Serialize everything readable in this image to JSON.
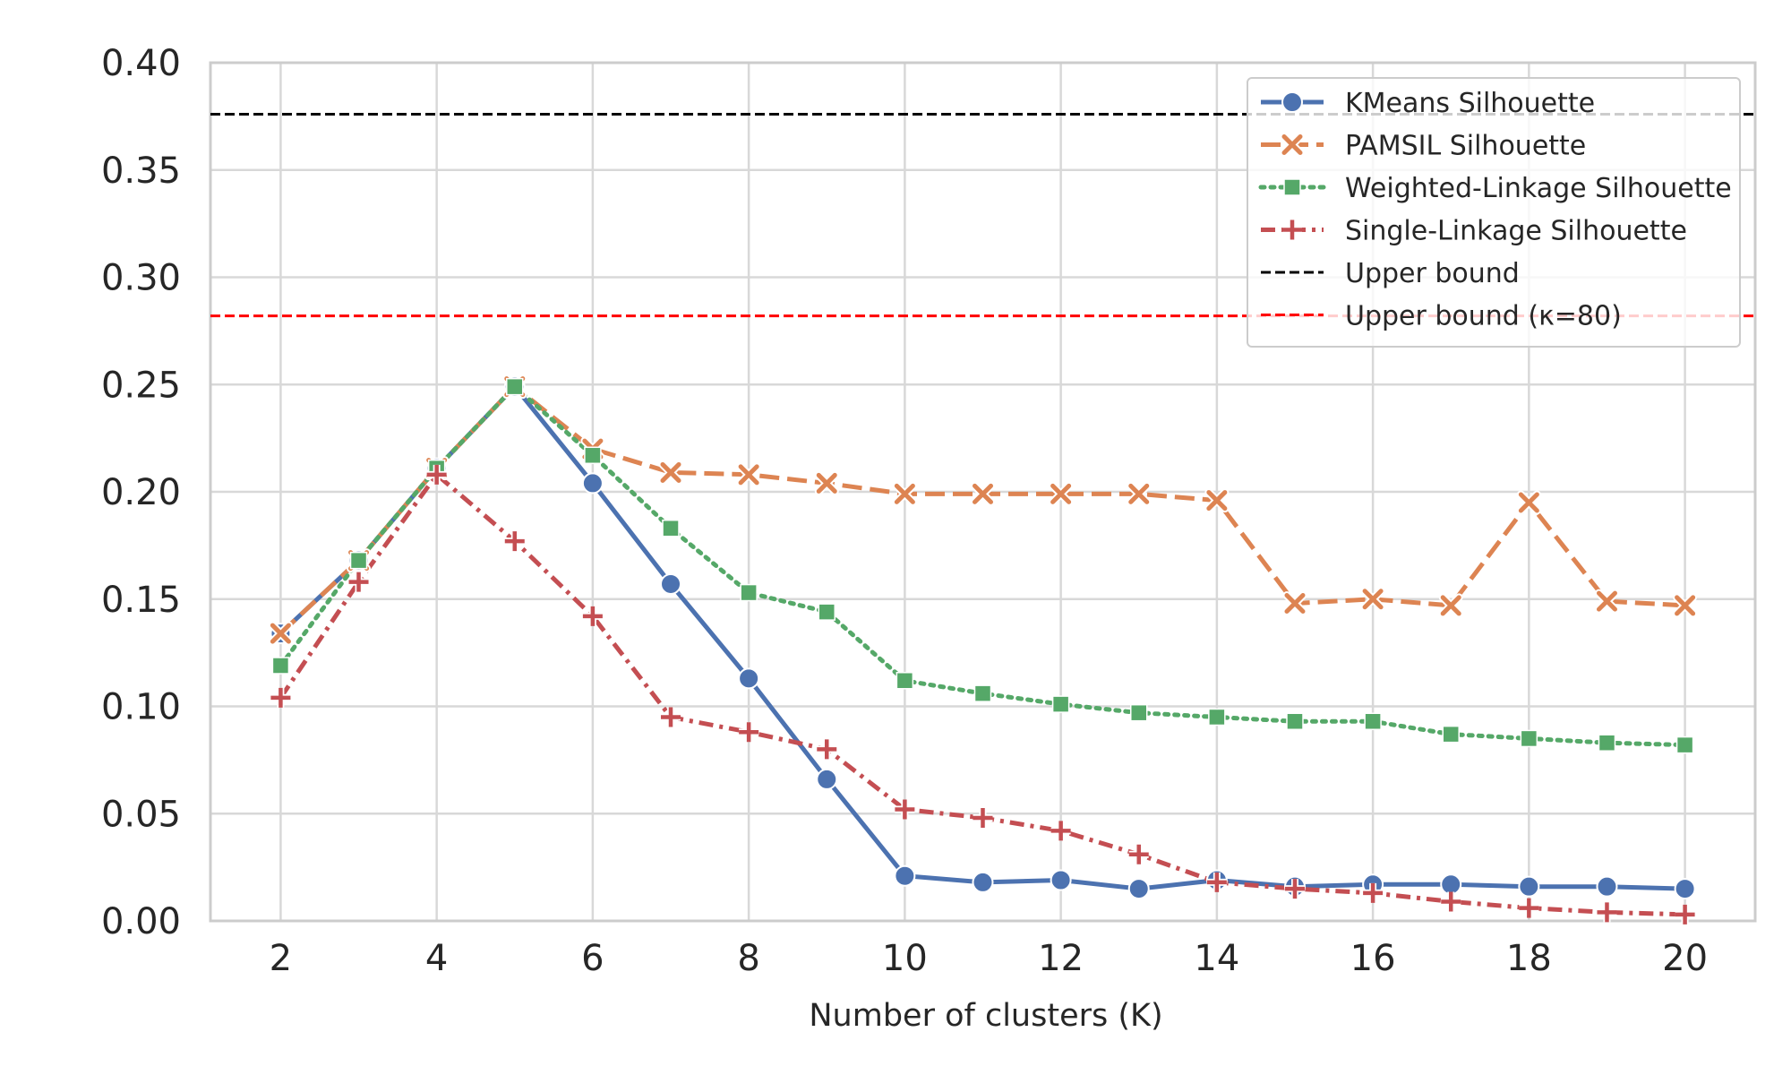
{
  "chart_data": {
    "type": "line",
    "xlabel": "Number of clusters (K)",
    "ylabel": "",
    "xlim": [
      1.1,
      20.9
    ],
    "ylim": [
      0.0,
      0.4
    ],
    "xticks": [
      2,
      4,
      6,
      8,
      10,
      12,
      14,
      16,
      18,
      20
    ],
    "yticks": [
      "0.00",
      "0.05",
      "0.10",
      "0.15",
      "0.20",
      "0.25",
      "0.30",
      "0.35",
      "0.40"
    ],
    "grid": true,
    "legend_position": "top-right",
    "x": [
      2,
      3,
      4,
      5,
      6,
      7,
      8,
      9,
      10,
      11,
      12,
      13,
      14,
      15,
      16,
      17,
      18,
      19,
      20
    ],
    "series": [
      {
        "name": "KMeans Silhouette",
        "color": "#4c72b0",
        "marker": "circle",
        "dash": "solid",
        "values": [
          0.134,
          0.168,
          0.211,
          0.249,
          0.204,
          0.157,
          0.113,
          0.066,
          0.021,
          0.018,
          0.019,
          0.015,
          0.019,
          0.016,
          0.017,
          0.017,
          0.016,
          0.016,
          0.015
        ]
      },
      {
        "name": "PAMSIL Silhouette",
        "color": "#dd8452",
        "marker": "x",
        "dash": "longdash",
        "values": [
          0.134,
          0.168,
          0.211,
          0.249,
          0.22,
          0.209,
          0.208,
          0.204,
          0.199,
          0.199,
          0.199,
          0.199,
          0.196,
          0.148,
          0.15,
          0.147,
          0.195,
          0.149,
          0.147
        ]
      },
      {
        "name": "Weighted-Linkage Silhouette",
        "color": "#55a868",
        "marker": "square",
        "dash": "dotted",
        "values": [
          0.119,
          0.168,
          0.211,
          0.249,
          0.217,
          0.183,
          0.153,
          0.144,
          0.112,
          0.106,
          0.101,
          0.097,
          0.095,
          0.093,
          0.093,
          0.087,
          0.085,
          0.083,
          0.082
        ]
      },
      {
        "name": "Single-Linkage Silhouette",
        "color": "#c44e52",
        "marker": "plus",
        "dash": "dashdot",
        "values": [
          0.104,
          0.158,
          0.208,
          0.177,
          0.142,
          0.095,
          0.088,
          0.08,
          0.052,
          0.048,
          0.042,
          0.031,
          0.018,
          0.015,
          0.013,
          0.009,
          0.006,
          0.004,
          0.003
        ]
      }
    ],
    "reference_lines": [
      {
        "name": "Upper bound",
        "value": 0.376,
        "color": "#000000"
      },
      {
        "name": "Upper bound (κ=80)",
        "value": 0.282,
        "color": "#ff0000"
      }
    ]
  }
}
